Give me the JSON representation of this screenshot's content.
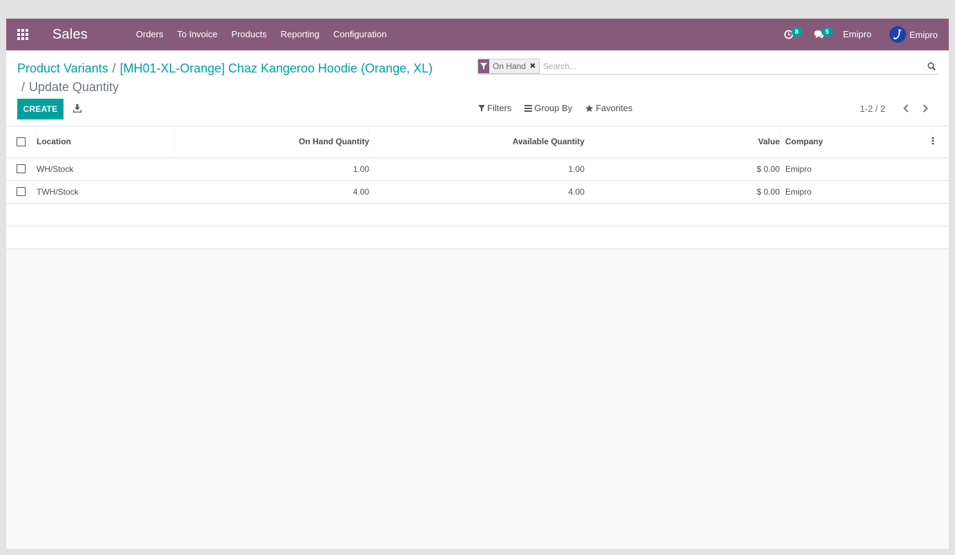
{
  "navbar": {
    "app_name": "Sales",
    "menu": [
      "Orders",
      "To Invoice",
      "Products",
      "Reporting",
      "Configuration"
    ],
    "activity_count": "8",
    "message_count": "5",
    "company": "Emipro",
    "user": "Emipro"
  },
  "breadcrumb": {
    "items": [
      "Product Variants",
      "[MH01-XL-Orange] Chaz Kangeroo Hoodie (Orange, XL)"
    ],
    "active": "Update Quantity"
  },
  "search": {
    "facet": "On Hand",
    "placeholder": "Search..."
  },
  "buttons": {
    "create": "CREATE"
  },
  "search_options": {
    "filters": "Filters",
    "group_by": "Group By",
    "favorites": "Favorites"
  },
  "pager": {
    "value": "1-2 / 2"
  },
  "table": {
    "columns": {
      "location": "Location",
      "on_hand": "On Hand Quantity",
      "available": "Available Quantity",
      "value": "Value",
      "company": "Company"
    },
    "rows": [
      {
        "location": "WH/Stock",
        "on_hand": "1.00",
        "available": "1.00",
        "value": "$ 0.00",
        "company": "Emipro"
      },
      {
        "location": "TWH/Stock",
        "on_hand": "4.00",
        "available": "4.00",
        "value": "$ 0.00",
        "company": "Emipro"
      }
    ]
  },
  "colors": {
    "brand": "#875a7b",
    "accent": "#00a09d"
  }
}
